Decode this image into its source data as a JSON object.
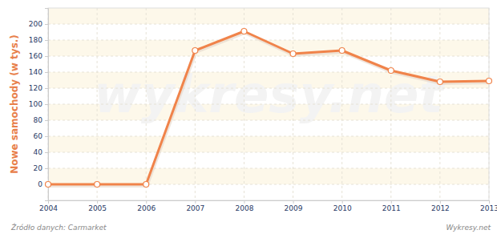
{
  "chart_data": {
    "type": "line",
    "y_label": "Nowe samochody (w tys.)",
    "x": [
      2004,
      2005,
      2006,
      2007,
      2008,
      2009,
      2010,
      2011,
      2012,
      2013
    ],
    "values": [
      0,
      0,
      0,
      167,
      191,
      163,
      167,
      142,
      128,
      129
    ],
    "color": "#f0834a",
    "marker": "circle",
    "xlim": [
      2004,
      2013
    ],
    "xticks": [
      2004,
      2005,
      2006,
      2007,
      2008,
      2009,
      2010,
      2011,
      2012,
      2013
    ],
    "ylim": [
      -20,
      220
    ],
    "yticks": [
      0,
      20,
      40,
      60,
      80,
      100,
      120,
      140,
      160,
      180,
      200
    ],
    "grid": true,
    "annotations": [
      "Źródło danych: Carmarket",
      "Wykresy.net",
      "wykresy.net"
    ]
  }
}
